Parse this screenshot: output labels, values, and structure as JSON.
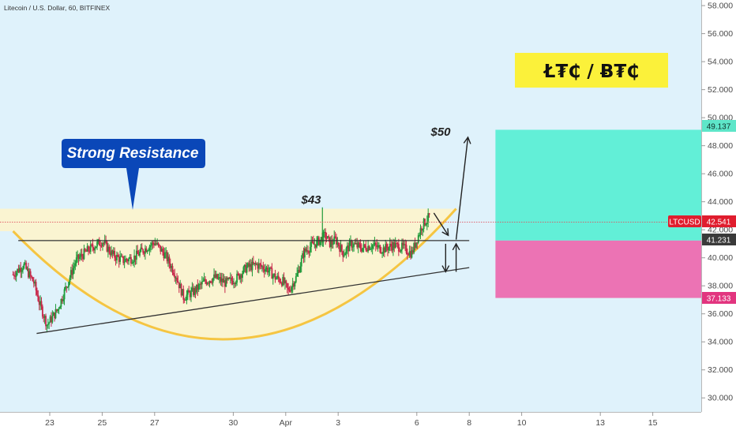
{
  "header": {
    "symbol_title": "Litecoin / U.S. Dollar, 60, BITFINEX"
  },
  "colors": {
    "background": "#dff2fb",
    "axis_panel": "#ffffff",
    "bull": "#1f9a3a",
    "bear": "#c8274a",
    "cup": "#f5c542",
    "cup_fill": "#fbf3cf",
    "target_zone": "#62efd7",
    "stop_zone": "#ec73b4",
    "price_line": "#e0525f",
    "callout": "#0a47b8",
    "banner": "#fbf13a"
  },
  "chart_data": {
    "type": "candlestick",
    "x_ticks": [
      {
        "day": 23,
        "label": "23"
      },
      {
        "day": 25,
        "label": "25"
      },
      {
        "day": 27,
        "label": "27"
      },
      {
        "day": 30,
        "label": "30"
      },
      {
        "day": 32,
        "label": "Apr"
      },
      {
        "day": 34,
        "label": "3"
      },
      {
        "day": 37,
        "label": "6"
      },
      {
        "day": 39,
        "label": "8"
      },
      {
        "day": 41,
        "label": "10"
      },
      {
        "day": 44,
        "label": "13"
      },
      {
        "day": 46,
        "label": "15"
      }
    ],
    "y_ticks": [
      "30.000",
      "32.000",
      "34.000",
      "36.000",
      "38.000",
      "40.000",
      "42.000",
      "44.000",
      "46.000",
      "48.000",
      "50.000",
      "52.000",
      "54.000",
      "56.000",
      "58.000"
    ],
    "ylim": [
      29,
      58.4
    ],
    "price_path": [
      [
        21.6,
        38.8
      ],
      [
        22.0,
        39.5
      ],
      [
        22.4,
        38.2
      ],
      [
        22.6,
        36.8
      ],
      [
        22.9,
        35.2
      ],
      [
        23.3,
        36.3
      ],
      [
        23.6,
        37.8
      ],
      [
        24.0,
        39.8
      ],
      [
        24.5,
        40.6
      ],
      [
        25.0,
        41.2
      ],
      [
        25.4,
        40.2
      ],
      [
        25.8,
        39.8
      ],
      [
        26.2,
        40.0
      ],
      [
        26.6,
        40.6
      ],
      [
        27.0,
        41.1
      ],
      [
        27.4,
        40.2
      ],
      [
        27.8,
        38.8
      ],
      [
        28.1,
        37.2
      ],
      [
        28.5,
        37.6
      ],
      [
        28.9,
        38.3
      ],
      [
        29.3,
        38.6
      ],
      [
        29.7,
        38.2
      ],
      [
        30.1,
        38.5
      ],
      [
        30.5,
        39.3
      ],
      [
        30.9,
        39.5
      ],
      [
        31.3,
        39.2
      ],
      [
        31.6,
        38.6
      ],
      [
        31.9,
        38.3
      ],
      [
        32.1,
        37.6
      ],
      [
        32.4,
        38.6
      ],
      [
        32.7,
        40.4
      ],
      [
        33.0,
        40.9
      ],
      [
        33.2,
        41.1
      ],
      [
        33.5,
        41.6
      ],
      [
        33.7,
        41.0
      ],
      [
        33.9,
        41.3
      ],
      [
        34.2,
        40.3
      ],
      [
        34.5,
        41.0
      ],
      [
        34.9,
        40.7
      ],
      [
        35.3,
        40.9
      ],
      [
        35.7,
        40.6
      ],
      [
        36.1,
        40.9
      ],
      [
        36.5,
        40.7
      ],
      [
        36.8,
        40.3
      ],
      [
        37.0,
        41.3
      ],
      [
        37.2,
        42.3
      ],
      [
        37.5,
        43.0
      ]
    ],
    "last_price": 42.541,
    "series_label": "LTCUSD"
  },
  "annotations": {
    "strong_resistance": "Strong Resistance",
    "target_label": "$50",
    "resistance_label": "$43",
    "banner": "Ł₮₵ / Ƀ₮₵"
  },
  "levels": {
    "target": {
      "label": "49.137",
      "value": 49.137
    },
    "entry": {
      "label": "41.231",
      "value": 41.231
    },
    "stop": {
      "label": "37.133",
      "value": 37.133
    },
    "last": {
      "symbol": "LTCUSD",
      "label": "42.541"
    },
    "resistance_line": 41.23,
    "trendline": {
      "from": [
        22.5,
        34.6
      ],
      "to": [
        39.0,
        39.3
      ]
    },
    "cup": {
      "left": [
        21.6,
        41.9
      ],
      "bottom": [
        30.0,
        34.2
      ],
      "right": [
        38.5,
        43.5
      ]
    },
    "resistance_zone_top": 43.5,
    "long_zone": {
      "from_day": 40.0,
      "to_day": 48.0
    }
  }
}
